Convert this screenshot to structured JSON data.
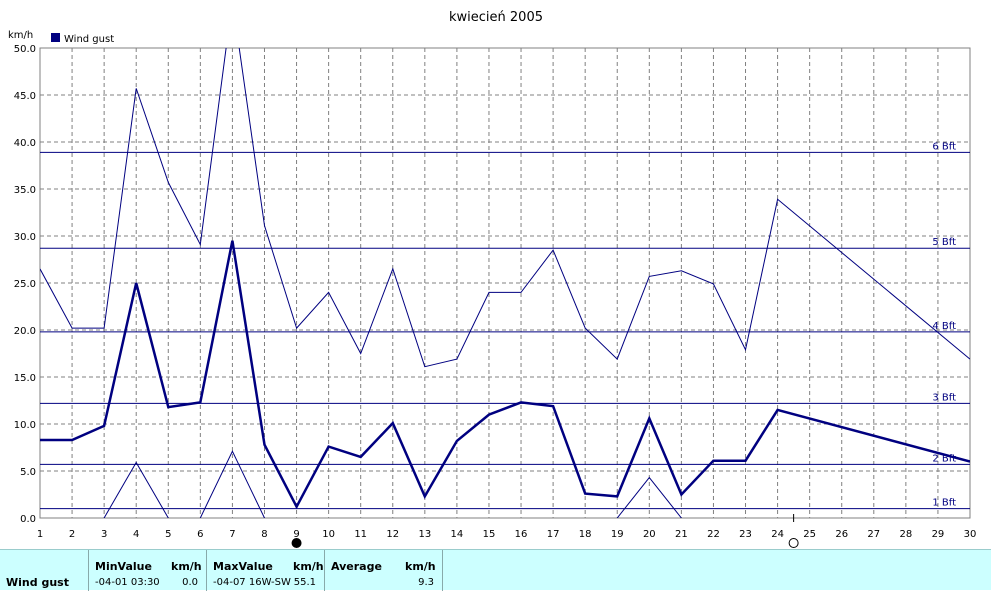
{
  "chart_data": {
    "type": "line",
    "title": "kwiecień 2005",
    "ylabel": "km/h",
    "legend": {
      "name": "Wind gust",
      "color": "#000080",
      "placement": "top-left"
    },
    "xlim": [
      1,
      30
    ],
    "ylim": [
      0,
      50
    ],
    "x_ticks": [
      "1",
      "2",
      "3",
      "4",
      "5",
      "6",
      "7",
      "8",
      "9",
      "10",
      "11",
      "12",
      "13",
      "14",
      "15",
      "16",
      "17",
      "18",
      "19",
      "20",
      "21",
      "22",
      "23",
      "24",
      "25",
      "26",
      "27",
      "28",
      "29",
      "30"
    ],
    "y_ticks": [
      "0.0",
      "5.0",
      "10.0",
      "15.0",
      "20.0",
      "25.0",
      "30.0",
      "35.0",
      "40.0",
      "45.0",
      "50.0"
    ],
    "grid": true,
    "x": [
      1,
      2,
      3,
      4,
      5,
      6,
      7,
      8,
      9,
      10,
      11,
      12,
      13,
      14,
      15,
      16,
      17,
      18,
      19,
      20,
      21,
      22,
      23,
      24,
      30
    ],
    "series": [
      {
        "role": "max",
        "values": [
          26.5,
          20.2,
          20.2,
          45.7,
          35.7,
          29.1,
          55.1,
          31.1,
          20.2,
          24.0,
          17.5,
          26.5,
          16.1,
          16.9,
          24.0,
          24.0,
          28.5,
          20.2,
          16.9,
          25.7,
          26.3,
          24.9,
          17.9,
          33.9,
          16.9
        ],
        "width": 1
      },
      {
        "role": "average",
        "values": [
          8.3,
          8.3,
          9.8,
          25.0,
          11.8,
          12.3,
          29.5,
          7.8,
          1.2,
          7.6,
          6.5,
          10.1,
          2.3,
          8.2,
          11.0,
          12.3,
          11.9,
          2.6,
          2.3,
          10.6,
          2.5,
          6.1,
          6.1,
          11.5,
          6.0
        ],
        "width": 2.5
      }
    ],
    "min_segments": [
      {
        "x": [
          3,
          4,
          5
        ],
        "values": [
          0.0,
          5.9,
          0.0
        ]
      },
      {
        "x": [
          6,
          7,
          8
        ],
        "values": [
          0.0,
          7.1,
          0.0
        ]
      },
      {
        "x": [
          19,
          20,
          21
        ],
        "values": [
          0.0,
          4.3,
          0.0
        ]
      }
    ],
    "beaufort": [
      {
        "label": "1 Bft",
        "value": 1.0
      },
      {
        "label": "2 Bft",
        "value": 5.7
      },
      {
        "label": "3 Bft",
        "value": 12.2
      },
      {
        "label": "4 Bft",
        "value": 19.8
      },
      {
        "label": "5 Bft",
        "value": 28.7
      },
      {
        "label": "6 Bft",
        "value": 38.9
      }
    ],
    "markers": [
      {
        "name": "full-moon-marker",
        "x": 9,
        "filled": true
      },
      {
        "name": "new-moon-marker",
        "x": 24.5,
        "filled": false
      }
    ],
    "line_color": "#000080",
    "grid_color": "#808080"
  },
  "stats": {
    "row_label": "Wind gust",
    "min_header": "MinValue",
    "min_unit": "km/h",
    "min_date": "-04-01  03:30",
    "min_value": "0.0",
    "max_header": "MaxValue",
    "max_unit": "km/h",
    "max_date": "-04-07  16W-SW",
    "max_value": "55.1",
    "avg_header": "Average",
    "avg_unit": "km/h",
    "avg_value": "9.3"
  }
}
